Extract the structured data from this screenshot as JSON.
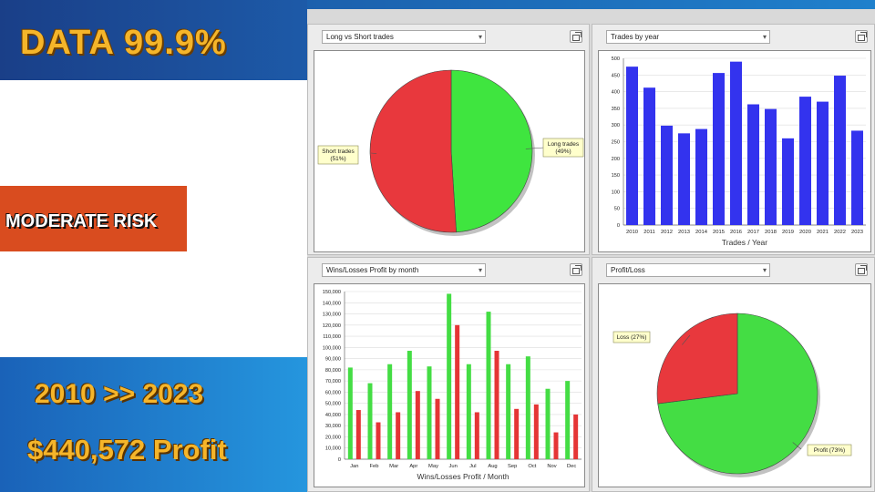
{
  "promo": {
    "data_label": "DATA 99.9%",
    "risk_label": "MODERATE RISK",
    "period_label": "2010 >> 2023",
    "profit_label": "$440,572 Profit"
  },
  "colors": {
    "long": "#3fe53f",
    "short": "#e8383d",
    "bars": "#3333ee",
    "wins": "#44dd44",
    "losses": "#e53535"
  },
  "panels": {
    "tl": {
      "selector": "Long vs Short trades"
    },
    "tr": {
      "selector": "Trades by year"
    },
    "bl": {
      "selector": "Wins/Losses Profit by month"
    },
    "br": {
      "selector": "Profit/Loss"
    }
  },
  "chart_data": [
    {
      "type": "pie",
      "labels": [
        "Long trades\n(49%)",
        "Short trades\n(51%)"
      ],
      "values": [
        49,
        51
      ]
    },
    {
      "type": "bar",
      "categories": [
        "2010",
        "2011",
        "2012",
        "2013",
        "2014",
        "2015",
        "2016",
        "2017",
        "2018",
        "2019",
        "2020",
        "2021",
        "2022",
        "2023"
      ],
      "values": [
        475,
        412,
        298,
        275,
        288,
        456,
        490,
        362,
        348,
        260,
        385,
        370,
        448,
        283
      ],
      "xlabel": "Trades / Year",
      "ylim": [
        0,
        500
      ],
      "yticks": [
        0,
        50,
        100,
        150,
        200,
        250,
        300,
        350,
        400,
        450,
        500
      ],
      "grid": true
    },
    {
      "type": "bar",
      "categories": [
        "Jan",
        "Feb",
        "Mar",
        "Apr",
        "May",
        "Jun",
        "Jul",
        "Aug",
        "Sep",
        "Oct",
        "Nov",
        "Dec"
      ],
      "series": [
        {
          "values": [
            82000,
            68000,
            85000,
            97000,
            83000,
            148000,
            85000,
            132000,
            85000,
            92000,
            63000,
            70000
          ]
        },
        {
          "values": [
            44000,
            33000,
            42000,
            61000,
            54000,
            120000,
            42000,
            97000,
            45000,
            49000,
            24000,
            40000
          ]
        }
      ],
      "xlabel": "Wins/Losses Profit / Month",
      "ylim": [
        0,
        150000
      ],
      "yticks": [
        "0",
        "10,000",
        "20,000",
        "30,000",
        "40,000",
        "50,000",
        "60,000",
        "70,000",
        "80,000",
        "90,000",
        "100,000",
        "110,000",
        "120,000",
        "130,000",
        "140,000",
        "150,000"
      ],
      "grid": true
    },
    {
      "type": "pie",
      "labels": [
        "Profit (73%)",
        "Loss (27%)"
      ],
      "values": [
        73,
        27
      ]
    }
  ]
}
